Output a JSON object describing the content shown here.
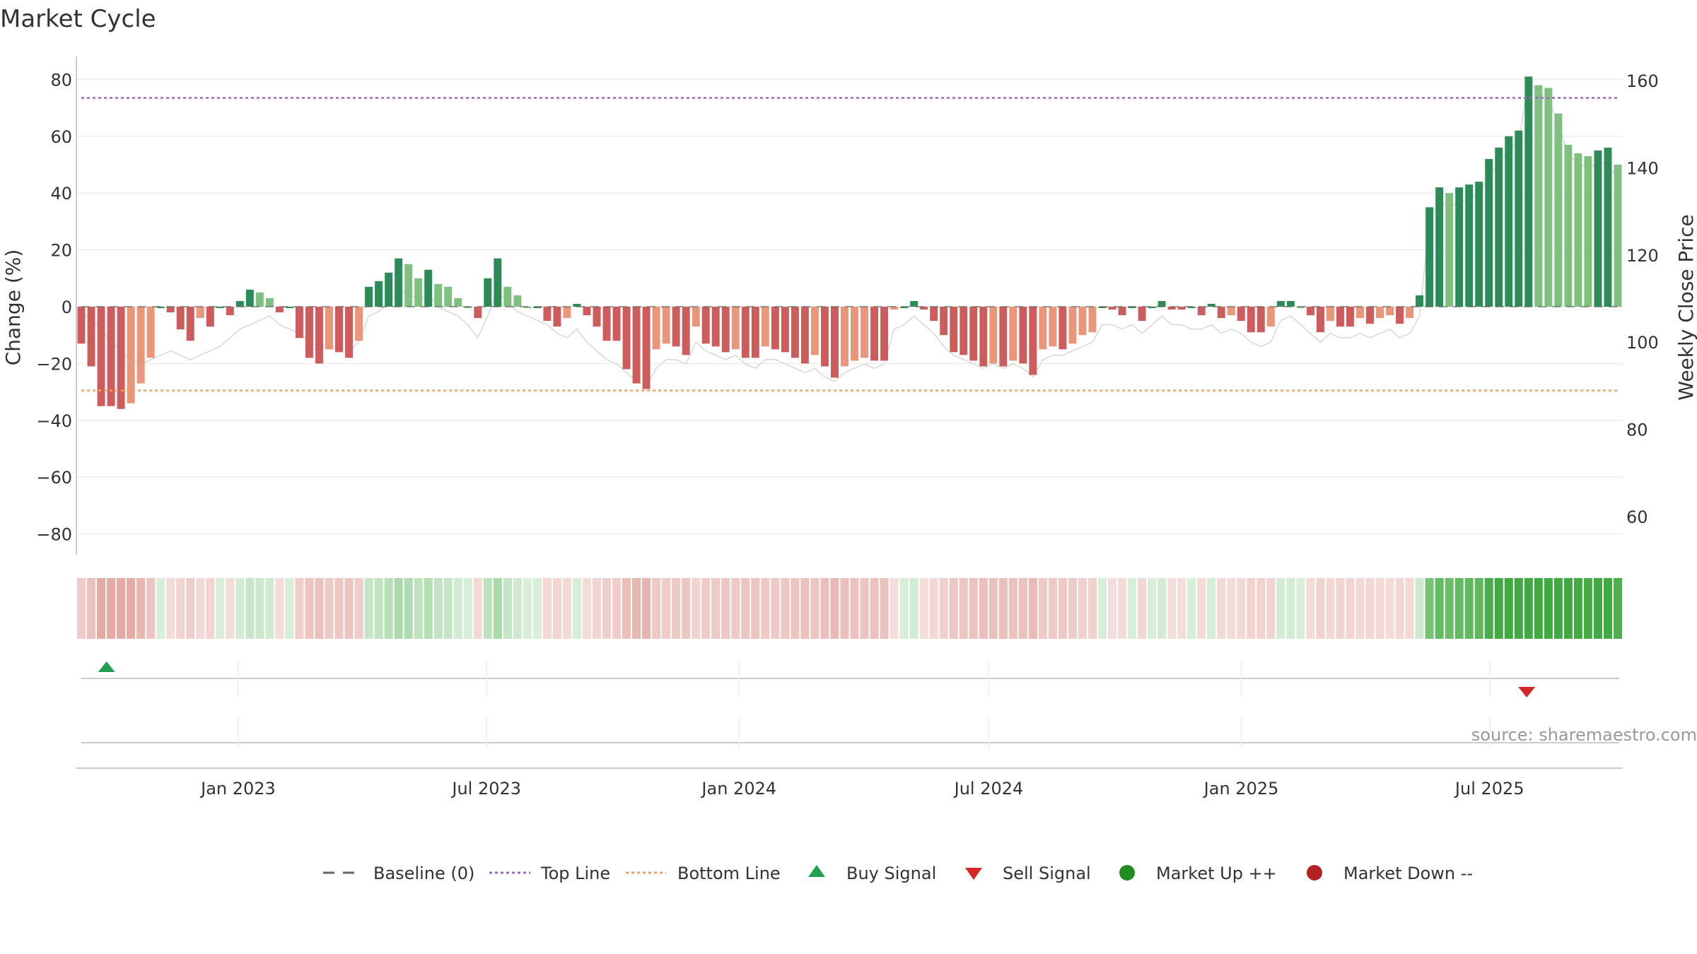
{
  "chart_data": {
    "type": "bar",
    "title": "Market Cycle",
    "ylabel_left": "Change (%)",
    "ylabel_right": "Weekly Close Price",
    "ylim_left": [
      -88,
      88
    ],
    "ylim_right": [
      50,
      165
    ],
    "left_ticks": [
      80,
      60,
      40,
      20,
      0,
      -20,
      -40,
      -60,
      -80
    ],
    "left_tick_labels": [
      "80",
      "60",
      "40",
      "20",
      "0",
      "−20",
      "−40",
      "−60",
      "−80"
    ],
    "right_ticks": [
      160,
      140,
      120,
      100,
      80,
      60
    ],
    "right_tick_labels": [
      "160",
      "140",
      "120",
      "100",
      "80",
      "60"
    ],
    "x_range": [
      "2022-09-05",
      "2025-10-06"
    ],
    "x_ticks": [
      {
        "date": "2023-01-01",
        "label": "Jan 2023"
      },
      {
        "date": "2023-07-01",
        "label": "Jul 2023"
      },
      {
        "date": "2024-01-01",
        "label": "Jan 2024"
      },
      {
        "date": "2024-07-01",
        "label": "Jul 2024"
      },
      {
        "date": "2025-01-01",
        "label": "Jan 2025"
      },
      {
        "date": "2025-07-01",
        "label": "Jul 2025"
      }
    ],
    "grid": true,
    "top_line": 73.5,
    "bottom_line": -29.5,
    "baseline": 0,
    "weeks_start": "2022-09-05",
    "weekly_change": [
      -13,
      -21,
      -35,
      -35,
      -36,
      -34,
      -27,
      -18,
      0,
      -2,
      -8,
      -12,
      -4,
      -7,
      0,
      -3,
      2,
      6,
      5,
      3,
      -2,
      0,
      -11,
      -18,
      -20,
      -15,
      -16,
      -18,
      -12,
      7,
      9,
      12,
      17,
      15,
      10,
      13,
      8,
      7,
      3,
      0,
      -4,
      10,
      17,
      7,
      4,
      0,
      0,
      -5,
      -7,
      -4,
      1,
      -3,
      -7,
      -12,
      -12,
      -22,
      -27,
      -29,
      -15,
      -13,
      -14,
      -17,
      -7,
      -13,
      -14,
      -16,
      -15,
      -18,
      -18,
      -14,
      -15,
      -16,
      -18,
      -20,
      -17,
      -21,
      -25,
      -21,
      -19,
      -18,
      -19,
      -19,
      -1,
      0,
      2,
      -1,
      -5,
      -10,
      -16,
      -17,
      -19,
      -21,
      -20,
      -21,
      -19,
      -20,
      -24,
      -15,
      -14,
      -15,
      -13,
      -10,
      -9,
      0,
      -1,
      -3,
      0,
      -5,
      0,
      2,
      -1,
      -1,
      0,
      -3,
      1,
      -4,
      -3,
      -5,
      -9,
      -9,
      -7,
      2,
      2,
      0,
      -3,
      -9,
      -5,
      -7,
      -7,
      -4,
      -6,
      -4,
      -3,
      -6,
      -4,
      4,
      35,
      42,
      40,
      42,
      43,
      44,
      52,
      56,
      60,
      62,
      81,
      78,
      77,
      68,
      57,
      54,
      53,
      55,
      56,
      50
    ],
    "bar_colors": {
      "strong_up": "#2e8b57",
      "weak_up": "#7fbf7f",
      "strong_down": "#cd5c5c",
      "weak_down": "#e9967a"
    },
    "weekly_price": [
      107,
      105,
      103,
      100,
      98,
      96,
      95,
      96,
      97,
      98,
      97,
      96,
      97,
      98,
      99,
      101,
      103,
      104,
      105,
      106,
      104,
      103,
      102,
      100,
      99,
      99,
      99,
      98,
      100,
      106,
      107,
      109,
      112,
      111,
      110,
      111,
      108,
      107,
      106,
      104,
      101,
      106,
      112,
      109,
      107,
      106,
      105,
      104,
      102,
      101,
      103,
      100,
      98,
      96,
      95,
      93,
      91,
      90,
      94,
      96,
      96,
      95,
      100,
      98,
      97,
      96,
      97,
      95,
      94,
      96,
      96,
      95,
      94,
      93,
      94,
      92,
      91,
      93,
      94,
      95,
      94,
      95,
      103,
      104,
      106,
      104,
      102,
      99,
      97,
      96,
      95,
      94,
      95,
      94,
      95,
      94,
      92,
      96,
      97,
      97,
      98,
      99,
      100,
      104,
      104,
      103,
      104,
      102,
      104,
      106,
      104,
      104,
      103,
      103,
      104,
      102,
      103,
      102,
      100,
      99,
      100,
      105,
      106,
      104,
      102,
      100,
      102,
      101,
      101,
      102,
      101,
      102,
      103,
      101,
      102,
      106,
      128,
      132,
      131,
      132,
      133,
      134,
      138,
      141,
      144,
      146,
      160,
      157,
      156,
      150,
      143,
      141,
      140,
      141,
      141,
      137
    ],
    "series": [
      {
        "name": "Baseline (0)",
        "style": "dashed",
        "color": "#666666"
      },
      {
        "name": "Top Line",
        "style": "dotted",
        "color": "#9966cc"
      },
      {
        "name": "Bottom Line",
        "style": "dotted",
        "color": "#f4a460"
      },
      {
        "name": "Buy Signal",
        "marker": "triangle-up",
        "color": "#22a050"
      },
      {
        "name": "Sell Signal",
        "marker": "triangle-down",
        "color": "#d62728"
      },
      {
        "name": "Market Up ++",
        "marker": "circle",
        "color": "#228b22"
      },
      {
        "name": "Market Down --",
        "marker": "circle",
        "color": "#b22222"
      }
    ],
    "signals": [
      {
        "type": "buy",
        "date": "2022-09-27"
      },
      {
        "type": "sell",
        "date": "2025-07-28"
      }
    ],
    "source": "source: sharemaestro.com"
  }
}
